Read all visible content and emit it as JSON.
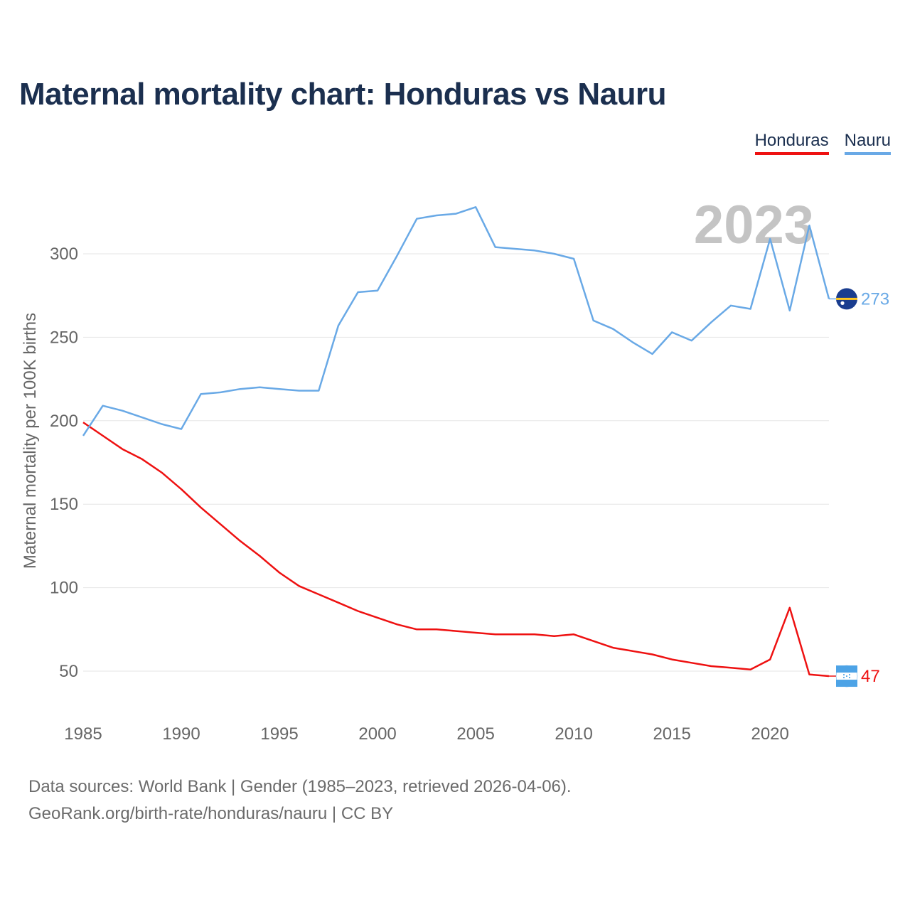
{
  "chart_data": {
    "type": "line",
    "title": "Maternal mortality chart: Honduras vs Nauru",
    "ylabel": "Maternal mortality per 100K births",
    "xlabel": "",
    "year_label": "2023",
    "xlim": [
      1985,
      2023
    ],
    "ylim": [
      30,
      340
    ],
    "y_ticks": [
      50,
      100,
      150,
      200,
      250,
      300
    ],
    "x_ticks": [
      1985,
      1990,
      1995,
      2000,
      2005,
      2010,
      2015,
      2020
    ],
    "grid": true,
    "legend": "top-right",
    "x": [
      1985,
      1986,
      1987,
      1988,
      1989,
      1990,
      1991,
      1992,
      1993,
      1994,
      1995,
      1996,
      1997,
      1998,
      1999,
      2000,
      2001,
      2002,
      2003,
      2004,
      2005,
      2006,
      2007,
      2008,
      2009,
      2010,
      2011,
      2012,
      2013,
      2014,
      2015,
      2016,
      2017,
      2018,
      2019,
      2020,
      2021,
      2022,
      2023
    ],
    "series": [
      {
        "name": "Honduras",
        "color": "#ee1111",
        "values": [
          199,
          191,
          183,
          177,
          169,
          159,
          148,
          138,
          128,
          119,
          109,
          101,
          96,
          91,
          86,
          82,
          78,
          75,
          75,
          74,
          73,
          72,
          72,
          72,
          71,
          72,
          68,
          64,
          62,
          60,
          57,
          55,
          53,
          52,
          51,
          57,
          88,
          48,
          47
        ],
        "end_label": "47",
        "flag_icon": "honduras-flag-icon"
      },
      {
        "name": "Nauru",
        "color": "#69a9e6",
        "values": [
          191,
          209,
          206,
          202,
          198,
          195,
          216,
          217,
          219,
          220,
          219,
          218,
          218,
          257,
          277,
          278,
          299,
          321,
          323,
          324,
          328,
          304,
          303,
          302,
          300,
          297,
          260,
          255,
          247,
          240,
          253,
          248,
          259,
          269,
          267,
          309,
          266,
          317,
          273
        ],
        "end_label": "273",
        "flag_icon": "nauru-flag-icon"
      }
    ]
  },
  "footer": {
    "source_line": "Data sources: World Bank | Gender (1985–2023, retrieved 2026-04-06).",
    "url_line": "GeoRank.org/birth-rate/honduras/nauru | CC BY"
  }
}
